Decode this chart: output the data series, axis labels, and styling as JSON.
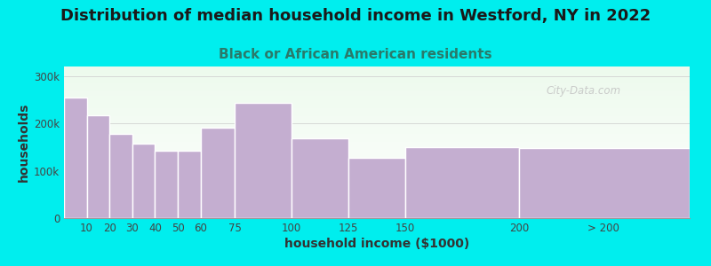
{
  "title": "Distribution of median household income in Westford, NY in 2022",
  "subtitle": "Black or African American residents",
  "xlabel": "household income ($1000)",
  "ylabel": "households",
  "bg_outer": "#00EEEE",
  "bar_color": "#c4aed0",
  "bar_edge_color": "#ffffff",
  "bar_linewidth": 1.0,
  "categories": [
    "10",
    "20",
    "30",
    "40",
    "50",
    "60",
    "75",
    "100",
    "125",
    "150",
    "200",
    "> 200"
  ],
  "left_edges": [
    0,
    10,
    20,
    30,
    40,
    50,
    60,
    75,
    100,
    125,
    150,
    200
  ],
  "widths": [
    10,
    10,
    10,
    10,
    10,
    10,
    15,
    25,
    25,
    25,
    50,
    75
  ],
  "values": [
    255000,
    218000,
    178000,
    158000,
    143000,
    142000,
    190000,
    243000,
    168000,
    128000,
    150000,
    147000
  ],
  "ylim": [
    0,
    320000
  ],
  "xlim": [
    0,
    275
  ],
  "yticks": [
    0,
    100000,
    200000,
    300000
  ],
  "ytick_labels": [
    "0",
    "100k",
    "200k",
    "300k"
  ],
  "xtick_positions": [
    10,
    20,
    30,
    40,
    50,
    60,
    75,
    100,
    125,
    150,
    200,
    237
  ],
  "xtick_labels": [
    "10",
    "20",
    "30",
    "40",
    "50",
    "60",
    "75",
    "100",
    "125",
    "150",
    "200",
    "> 200"
  ],
  "watermark": "City-Data.com",
  "title_color": "#1a1a1a",
  "subtitle_color": "#2a7a6a",
  "title_fontsize": 13,
  "subtitle_fontsize": 11,
  "axis_label_fontsize": 10,
  "tick_fontsize": 8.5
}
